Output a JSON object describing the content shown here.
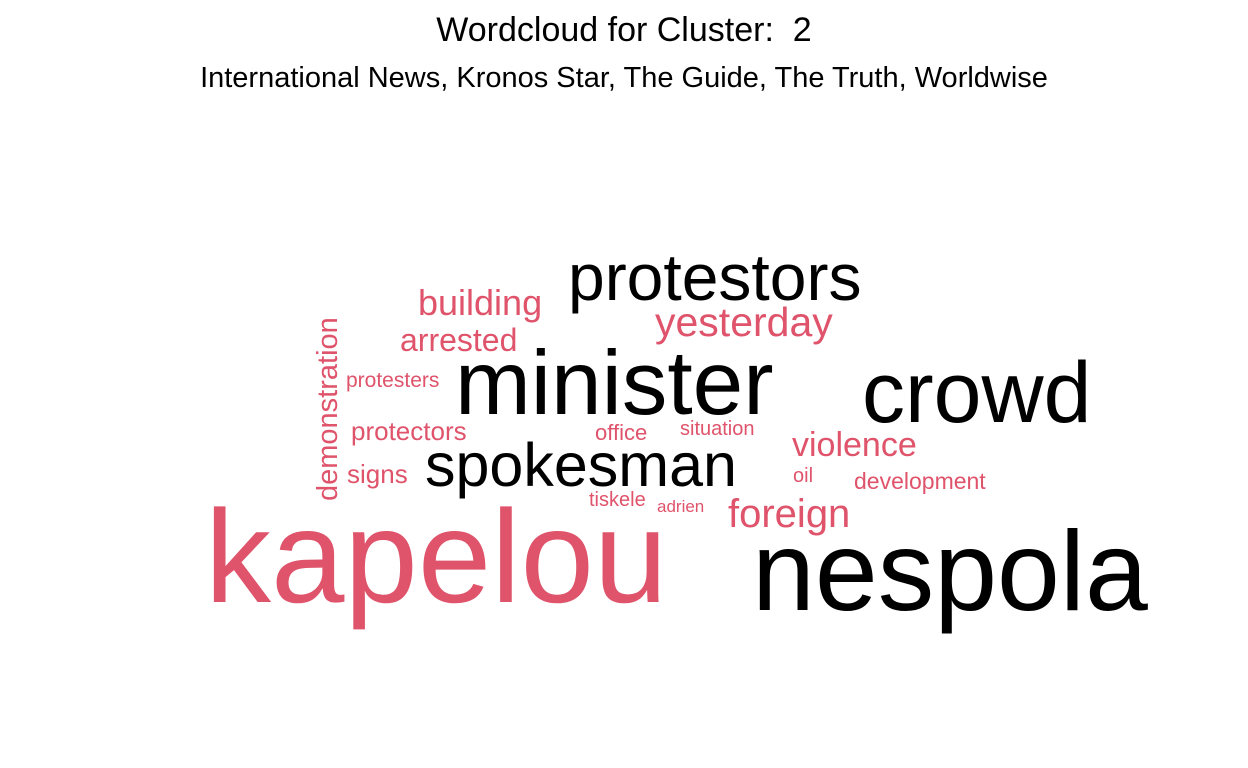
{
  "title": "Wordcloud for Cluster:  2",
  "subtitle": "International News, Kronos Star, The Guide, The Truth, Worldwise",
  "colors": {
    "dark": "#000000",
    "accent": "#df536b"
  },
  "chart_data": {
    "type": "wordcloud",
    "title": "Wordcloud for Cluster:  2",
    "subtitle": "International News, Kronos Star, The Guide, The Truth, Worldwise",
    "words": [
      {
        "text": "kapelou",
        "weight": 100,
        "color": "#df536b",
        "rotated": false
      },
      {
        "text": "nespola",
        "weight": 88,
        "color": "#000000",
        "rotated": false
      },
      {
        "text": "crowd",
        "weight": 68,
        "color": "#000000",
        "rotated": false
      },
      {
        "text": "minister",
        "weight": 75,
        "color": "#000000",
        "rotated": false
      },
      {
        "text": "protestors",
        "weight": 55,
        "color": "#000000",
        "rotated": false
      },
      {
        "text": "spokesman",
        "weight": 52,
        "color": "#000000",
        "rotated": false
      },
      {
        "text": "building",
        "weight": 32,
        "color": "#df536b",
        "rotated": false
      },
      {
        "text": "yesterday",
        "weight": 35,
        "color": "#df536b",
        "rotated": false
      },
      {
        "text": "arrested",
        "weight": 28,
        "color": "#df536b",
        "rotated": false
      },
      {
        "text": "foreign",
        "weight": 33,
        "color": "#df536b",
        "rotated": false
      },
      {
        "text": "violence",
        "weight": 30,
        "color": "#df536b",
        "rotated": false
      },
      {
        "text": "demonstration",
        "weight": 26,
        "color": "#df536b",
        "rotated": true
      },
      {
        "text": "protectors",
        "weight": 23,
        "color": "#df536b",
        "rotated": false
      },
      {
        "text": "signs",
        "weight": 22,
        "color": "#df536b",
        "rotated": false
      },
      {
        "text": "protesters",
        "weight": 18,
        "color": "#df536b",
        "rotated": false
      },
      {
        "text": "office",
        "weight": 19,
        "color": "#df536b",
        "rotated": false
      },
      {
        "text": "situation",
        "weight": 18,
        "color": "#df536b",
        "rotated": false
      },
      {
        "text": "development",
        "weight": 20,
        "color": "#df536b",
        "rotated": false
      },
      {
        "text": "oil",
        "weight": 17,
        "color": "#df536b",
        "rotated": false
      },
      {
        "text": "tiskele",
        "weight": 16,
        "color": "#df536b",
        "rotated": false
      },
      {
        "text": "adrien",
        "weight": 15,
        "color": "#df536b",
        "rotated": false
      }
    ]
  }
}
